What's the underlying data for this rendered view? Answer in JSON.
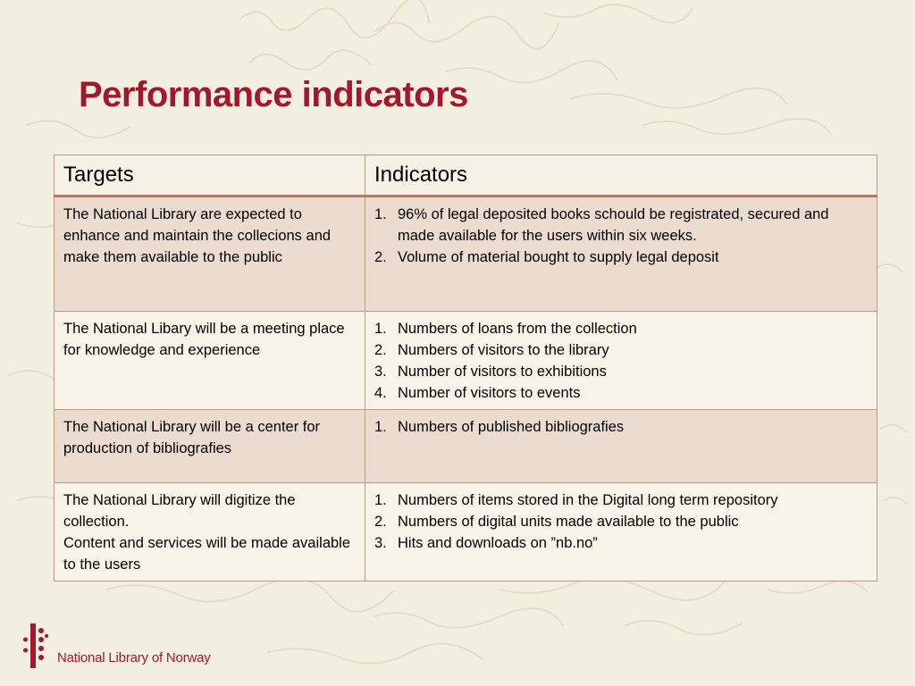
{
  "slide": {
    "title": "Performance indicators"
  },
  "table": {
    "headers": [
      "Targets",
      "Indicators"
    ],
    "rows": [
      {
        "target": "The National Library are expected to enhance and maintain the collecions and make them available to the public",
        "indicators": [
          "96% of legal deposited books schould be registrated, secured and made available for the users within six weeks.",
          "Volume of material bought to supply legal deposit"
        ]
      },
      {
        "target": "The National Libary will be a meeting place for knowledge and experience",
        "indicators": [
          "Numbers of loans from the collection",
          "Numbers of visitors to the library",
          "Number of visitors to exhibitions",
          "Number of visitors to events"
        ]
      },
      {
        "target": "The National Library will be a center for production of bibliografies",
        "indicators": [
          "Numbers of published bibliografies"
        ]
      },
      {
        "target_lines": [
          "The National Library will digitize the collection.",
          "Content and services will be made available to the users"
        ],
        "indicators": [
          "Numbers of items stored in the Digital long term repository",
          "Numbers of digital units made available to the public",
          "Hits and downloads on ”nb.no”"
        ]
      }
    ]
  },
  "footer": {
    "logo_text": "National Library of Norway",
    "brand_color": "#a3162c"
  }
}
